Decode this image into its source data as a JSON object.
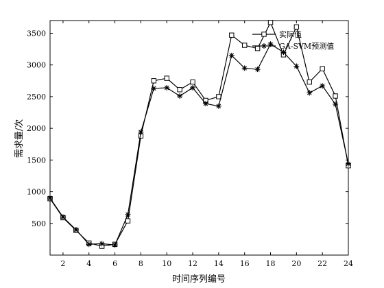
{
  "chart_data": {
    "type": "line",
    "xlabel": "时间序列编号",
    "ylabel": "需求量/次",
    "xlim": [
      1,
      24
    ],
    "ylim": [
      0,
      3700
    ],
    "x_ticks": [
      2,
      4,
      6,
      8,
      10,
      12,
      14,
      16,
      18,
      20,
      22,
      24
    ],
    "y_ticks": [
      500,
      1000,
      1500,
      2000,
      2500,
      3000,
      3500
    ],
    "legend_position": "top-right",
    "x": [
      1,
      2,
      3,
      4,
      5,
      6,
      7,
      8,
      9,
      10,
      11,
      12,
      13,
      14,
      15,
      16,
      17,
      18,
      19,
      20,
      21,
      22,
      23,
      24
    ],
    "series": [
      {
        "name": "实际值",
        "marker": "square",
        "values": [
          890,
          590,
          390,
          190,
          140,
          170,
          540,
          1880,
          2750,
          2790,
          2610,
          2730,
          2440,
          2500,
          3470,
          3310,
          3260,
          3670,
          3160,
          3600,
          2730,
          2940,
          2510,
          1410
        ]
      },
      {
        "name": "GA-SVM预测值",
        "marker": "star",
        "values": [
          900,
          600,
          400,
          170,
          180,
          160,
          640,
          1940,
          2630,
          2640,
          2510,
          2640,
          2390,
          2350,
          3150,
          2950,
          2930,
          3330,
          3200,
          2980,
          2560,
          2670,
          2380,
          1440
        ]
      }
    ]
  }
}
